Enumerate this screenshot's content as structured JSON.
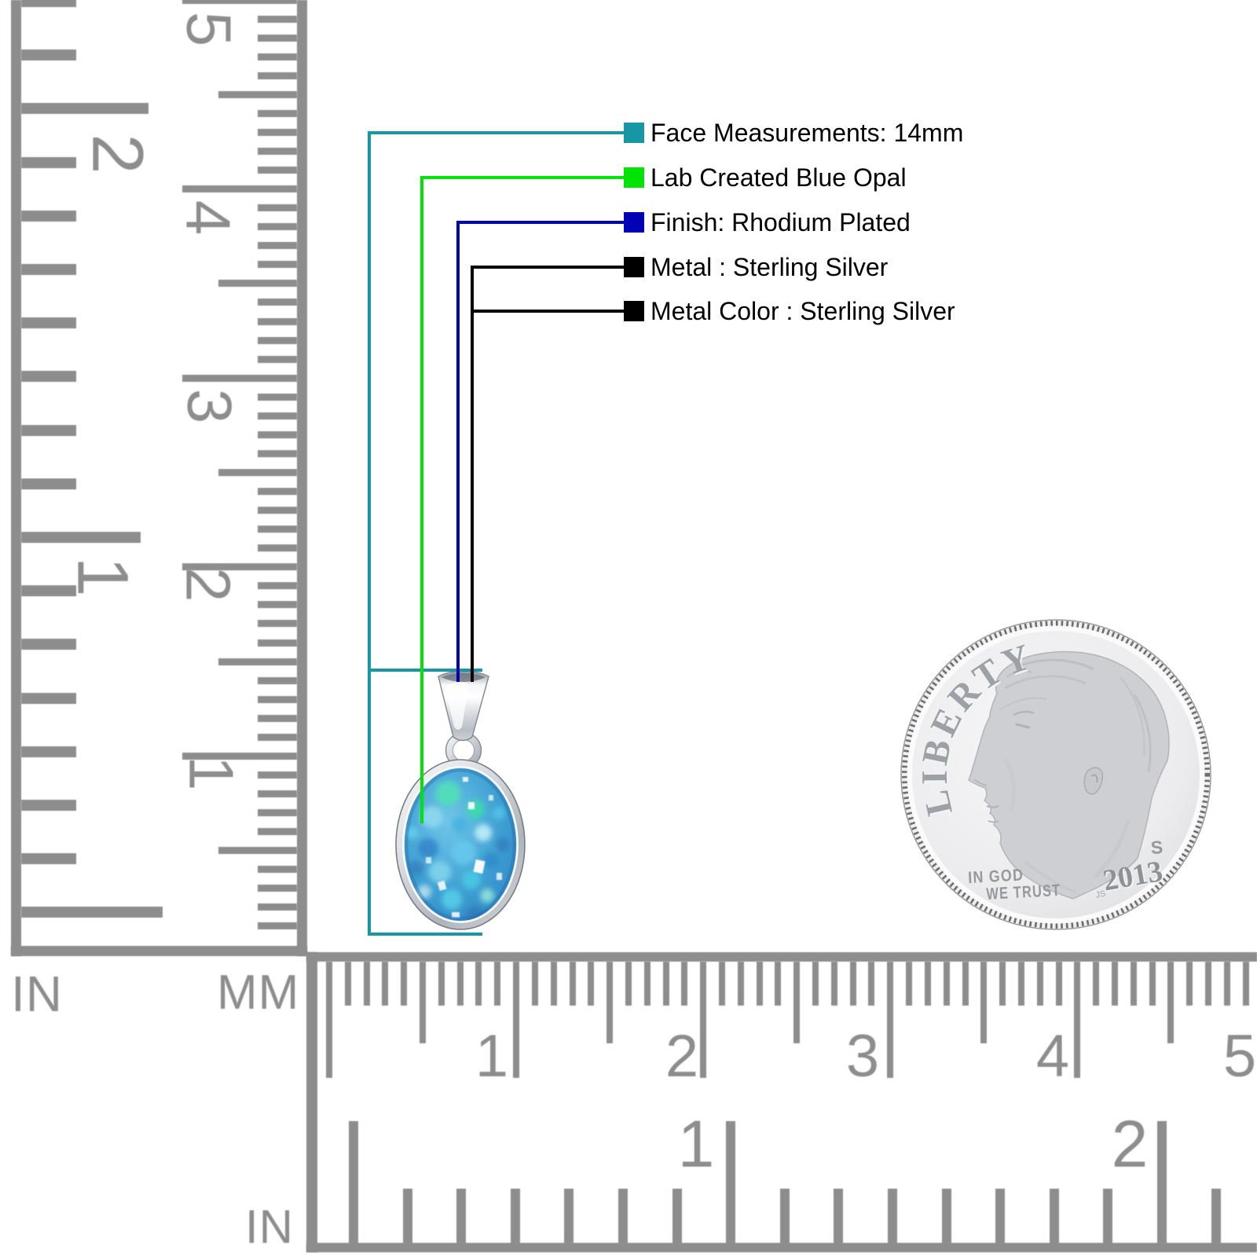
{
  "annotations": {
    "items": [
      {
        "label": "Face Measurements: 14mm",
        "color": "#1796a4"
      },
      {
        "label": "Lab Created Blue Opal",
        "color": "#00e405"
      },
      {
        "label": "Finish: Rhodium Plated",
        "color": "#0101b5"
      },
      {
        "label": "Metal : Sterling Silver",
        "color": "#000000"
      },
      {
        "label": "Metal Color : Sterling Silver",
        "color": "#000000"
      }
    ]
  },
  "rulers": {
    "color": "#8d8d8d",
    "vertical_inch": {
      "unit_label": "IN",
      "numbers": [
        "2",
        "1"
      ]
    },
    "vertical_mm": {
      "unit_label": "MM",
      "numbers": [
        "5",
        "4",
        "3",
        "2",
        "1"
      ]
    },
    "horizontal_mm": {
      "numbers": [
        "1",
        "2",
        "3",
        "4",
        "5"
      ]
    },
    "horizontal_inch": {
      "unit_label": "IN",
      "numbers": [
        "1",
        "2"
      ]
    }
  },
  "coin": {
    "legend": "LIBERTY",
    "motto_line1": "IN GOD",
    "motto_line2": "WE TRUST",
    "mint_mark": "S",
    "year": "2013",
    "designer_initials": "JS"
  },
  "pendant": {
    "stone_base_color": "#3d9ed2",
    "metal_color": "#d8dade"
  }
}
